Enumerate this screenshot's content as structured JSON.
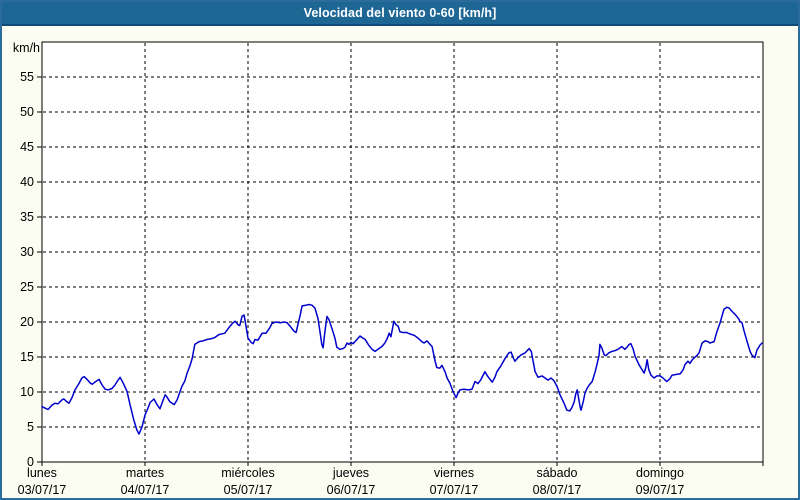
{
  "window": {
    "title": "Velocidad del viento 0-60 [km/h]"
  },
  "colors": {
    "titlebar_bg": "#1e6795",
    "titlebar_border": "#0f4c78",
    "frame_border": "#2c6c9c",
    "page_bg": "#fbfdf3",
    "plot_bg": "#ffffff",
    "grid": "#000000",
    "axis": "#000000",
    "text": "#000000",
    "line": "#0000cc"
  },
  "chart_data": {
    "type": "line",
    "title": "Velocidad del viento 0-60 [km/h]",
    "unit_label": "km/h",
    "ylim": [
      0,
      60
    ],
    "ytick_step": 5,
    "ytick_label_max": 55,
    "x_unit": "hours since Monday 00:00",
    "xlim": [
      0,
      168
    ],
    "grid": "dashed",
    "legend": "none",
    "days": [
      {
        "name": "lunes",
        "date": "03/07/17"
      },
      {
        "name": "martes",
        "date": "04/07/17"
      },
      {
        "name": "miércoles",
        "date": "05/07/17"
      },
      {
        "name": "jueves",
        "date": "06/07/17"
      },
      {
        "name": "viernes",
        "date": "07/07/17"
      },
      {
        "name": "sábado",
        "date": "08/07/17"
      },
      {
        "name": "domingo",
        "date": "09/07/17"
      }
    ],
    "series": [
      {
        "name": "Velocidad del viento",
        "color": "#0000cc",
        "points": [
          [
            0,
            7.9
          ],
          [
            0.7,
            7.7
          ],
          [
            1.4,
            7.5
          ],
          [
            2.3,
            8.1
          ],
          [
            3,
            8.4
          ],
          [
            3.7,
            8.3
          ],
          [
            4.7,
            8.9
          ],
          [
            5.1,
            9
          ],
          [
            5.8,
            8.6
          ],
          [
            6.3,
            8.4
          ],
          [
            7,
            9.2
          ],
          [
            7.7,
            10.3
          ],
          [
            8.6,
            11.2
          ],
          [
            9.3,
            12
          ],
          [
            9.8,
            12.2
          ],
          [
            10.5,
            11.8
          ],
          [
            11.2,
            11.3
          ],
          [
            11.7,
            11.1
          ],
          [
            12.3,
            11.4
          ],
          [
            12.8,
            11.6
          ],
          [
            13.3,
            11.8
          ],
          [
            14,
            11
          ],
          [
            14.7,
            10.4
          ],
          [
            15.4,
            10.3
          ],
          [
            16.3,
            10.5
          ],
          [
            17,
            11
          ],
          [
            17.5,
            11.5
          ],
          [
            18.2,
            12.1
          ],
          [
            18.9,
            11.3
          ],
          [
            19.8,
            10.1
          ],
          [
            20.5,
            8.2
          ],
          [
            21.4,
            6
          ],
          [
            22.1,
            4.6
          ],
          [
            22.6,
            4
          ],
          [
            23.3,
            5
          ],
          [
            24,
            6.7
          ],
          [
            24.7,
            7.7
          ],
          [
            25.2,
            8.5
          ],
          [
            26.1,
            9
          ],
          [
            26.8,
            8.2
          ],
          [
            27.5,
            7.6
          ],
          [
            28.2,
            8.8
          ],
          [
            28.7,
            9.6
          ],
          [
            29.1,
            9.3
          ],
          [
            29.8,
            8.6
          ],
          [
            30.8,
            8.2
          ],
          [
            31.5,
            8.9
          ],
          [
            31.9,
            9.6
          ],
          [
            32.6,
            10.8
          ],
          [
            33.3,
            11.6
          ],
          [
            33.8,
            12.7
          ],
          [
            34.5,
            13.8
          ],
          [
            35,
            14.8
          ],
          [
            35.6,
            16.8
          ],
          [
            36.6,
            17.2
          ],
          [
            37.5,
            17.3
          ],
          [
            38.4,
            17.5
          ],
          [
            39.4,
            17.6
          ],
          [
            40.3,
            17.8
          ],
          [
            41.2,
            18.2
          ],
          [
            42.6,
            18.4
          ],
          [
            43.8,
            19.4
          ],
          [
            44.5,
            19.9
          ],
          [
            45,
            20.1
          ],
          [
            45.7,
            19.6
          ],
          [
            46.1,
            19.5
          ],
          [
            46.6,
            20.8
          ],
          [
            47.1,
            21
          ],
          [
            47.5,
            19.5
          ],
          [
            48,
            17.7
          ],
          [
            48.7,
            17.1
          ],
          [
            49.2,
            16.9
          ],
          [
            49.6,
            17.5
          ],
          [
            50.3,
            17.4
          ],
          [
            51.3,
            18.4
          ],
          [
            52.2,
            18.4
          ],
          [
            53.1,
            19.2
          ],
          [
            53.6,
            19.8
          ],
          [
            54.5,
            20
          ],
          [
            55.5,
            19.9
          ],
          [
            56.4,
            20
          ],
          [
            57.1,
            19.9
          ],
          [
            57.8,
            19.4
          ],
          [
            58.7,
            18.7
          ],
          [
            59.2,
            18.5
          ],
          [
            59.7,
            19.8
          ],
          [
            60.1,
            20.8
          ],
          [
            60.6,
            22.3
          ],
          [
            61.5,
            22.4
          ],
          [
            62.2,
            22.5
          ],
          [
            62.9,
            22.4
          ],
          [
            63.6,
            22
          ],
          [
            64.3,
            20.5
          ],
          [
            64.8,
            18.5
          ],
          [
            65.2,
            16.8
          ],
          [
            65.5,
            16.3
          ],
          [
            65.9,
            18.5
          ],
          [
            66.4,
            20.8
          ],
          [
            66.9,
            20.3
          ],
          [
            67.1,
            19.9
          ],
          [
            67.8,
            18.6
          ],
          [
            68.3,
            17.6
          ],
          [
            68.7,
            16.4
          ],
          [
            69.4,
            16.1
          ],
          [
            70.1,
            16.2
          ],
          [
            70.6,
            16.4
          ],
          [
            71.1,
            17
          ],
          [
            71.5,
            16.8
          ],
          [
            72,
            17.1
          ],
          [
            72.5,
            16.9
          ],
          [
            72.9,
            17.2
          ],
          [
            73.4,
            17.5
          ],
          [
            74.1,
            18
          ],
          [
            74.8,
            17.7
          ],
          [
            75.3,
            17.5
          ],
          [
            76,
            16.8
          ],
          [
            76.9,
            16.1
          ],
          [
            77.6,
            15.8
          ],
          [
            78.5,
            16.2
          ],
          [
            79.2,
            16.5
          ],
          [
            79.9,
            17
          ],
          [
            80.4,
            17.6
          ],
          [
            80.9,
            18.4
          ],
          [
            81.3,
            17.9
          ],
          [
            82,
            20.1
          ],
          [
            82.5,
            19.6
          ],
          [
            83,
            19.4
          ],
          [
            83.4,
            18.6
          ],
          [
            84.1,
            18.5
          ],
          [
            85,
            18.5
          ],
          [
            85.7,
            18.3
          ],
          [
            86.7,
            18.1
          ],
          [
            87.4,
            17.8
          ],
          [
            87.8,
            17.6
          ],
          [
            88.5,
            17.2
          ],
          [
            89,
            17
          ],
          [
            89.7,
            17.3
          ],
          [
            90.4,
            16.8
          ],
          [
            90.9,
            16.5
          ],
          [
            91.6,
            14.4
          ],
          [
            92,
            13.5
          ],
          [
            92.7,
            13.4
          ],
          [
            93.2,
            13.8
          ],
          [
            93.9,
            12.9
          ],
          [
            94.4,
            12
          ],
          [
            95.1,
            11.2
          ],
          [
            95.5,
            10.5
          ],
          [
            96,
            9.8
          ],
          [
            96.5,
            9.2
          ],
          [
            96.9,
            9.8
          ],
          [
            97.4,
            10.3
          ],
          [
            98.3,
            10.4
          ],
          [
            99.3,
            10.3
          ],
          [
            100.2,
            10.4
          ],
          [
            100.9,
            11.5
          ],
          [
            101.6,
            11.2
          ],
          [
            102.3,
            11.8
          ],
          [
            103.2,
            12.9
          ],
          [
            103.9,
            12.2
          ],
          [
            104.9,
            11.4
          ],
          [
            105.6,
            12.2
          ],
          [
            106,
            12.9
          ],
          [
            107,
            13.8
          ],
          [
            107.9,
            14.8
          ],
          [
            108.8,
            15.6
          ],
          [
            109.3,
            15.7
          ],
          [
            109.8,
            14.9
          ],
          [
            110.2,
            14.4
          ],
          [
            110.9,
            14.9
          ],
          [
            111.6,
            15.3
          ],
          [
            112.6,
            15.6
          ],
          [
            113.5,
            16.2
          ],
          [
            114,
            15.8
          ],
          [
            114.4,
            14.5
          ],
          [
            114.9,
            12.9
          ],
          [
            115.6,
            12.1
          ],
          [
            116.5,
            12.3
          ],
          [
            117.2,
            12
          ],
          [
            117.9,
            11.7
          ],
          [
            118.6,
            12
          ],
          [
            119.3,
            11.6
          ],
          [
            120,
            10.8
          ],
          [
            120.7,
            9.6
          ],
          [
            121.4,
            8.7
          ],
          [
            121.9,
            8
          ],
          [
            122.3,
            7.4
          ],
          [
            123,
            7.3
          ],
          [
            123.5,
            7.8
          ],
          [
            124,
            8.6
          ],
          [
            124.4,
            9.8
          ],
          [
            124.7,
            10.3
          ],
          [
            125.1,
            8.9
          ],
          [
            125.4,
            7.8
          ],
          [
            125.6,
            7.4
          ],
          [
            126.1,
            8.6
          ],
          [
            126.5,
            9.8
          ],
          [
            127,
            10.5
          ],
          [
            127.5,
            11
          ],
          [
            128.2,
            11.5
          ],
          [
            128.9,
            12.9
          ],
          [
            129.3,
            13.9
          ],
          [
            129.8,
            15.3
          ],
          [
            130,
            16.8
          ],
          [
            130.5,
            16.2
          ],
          [
            131,
            15.3
          ],
          [
            131.4,
            15.2
          ],
          [
            132.1,
            15.6
          ],
          [
            132.8,
            15.8
          ],
          [
            133.5,
            15.9
          ],
          [
            134.2,
            16.1
          ],
          [
            135.1,
            16.5
          ],
          [
            135.8,
            16.1
          ],
          [
            136.3,
            16.4
          ],
          [
            136.8,
            16.8
          ],
          [
            137.2,
            16.9
          ],
          [
            137.7,
            16.2
          ],
          [
            138.2,
            15.1
          ],
          [
            139.1,
            13.9
          ],
          [
            139.8,
            13.2
          ],
          [
            140.3,
            12.7
          ],
          [
            140.7,
            13.5
          ],
          [
            141,
            14.6
          ],
          [
            141.4,
            13.2
          ],
          [
            141.9,
            12.4
          ],
          [
            142.6,
            12
          ],
          [
            143.3,
            12.3
          ],
          [
            144,
            12.3
          ],
          [
            144.7,
            12
          ],
          [
            145.2,
            11.7
          ],
          [
            145.6,
            11.5
          ],
          [
            146.3,
            11.9
          ],
          [
            146.8,
            12.4
          ],
          [
            147.7,
            12.5
          ],
          [
            148.7,
            12.6
          ],
          [
            149.4,
            13.2
          ],
          [
            149.8,
            13.9
          ],
          [
            150.5,
            14.4
          ],
          [
            151,
            14.1
          ],
          [
            151.5,
            14.6
          ],
          [
            152.2,
            15
          ],
          [
            152.6,
            15.2
          ],
          [
            153.1,
            15.6
          ],
          [
            153.8,
            17
          ],
          [
            154.5,
            17.3
          ],
          [
            155.2,
            17.2
          ],
          [
            155.6,
            17
          ],
          [
            156.6,
            17.2
          ],
          [
            157.3,
            18.7
          ],
          [
            158,
            19.9
          ],
          [
            158.9,
            21.8
          ],
          [
            159.6,
            22.1
          ],
          [
            160.1,
            22
          ],
          [
            160.8,
            21.5
          ],
          [
            161.5,
            21.1
          ],
          [
            162.4,
            20.4
          ],
          [
            162.6,
            20.1
          ],
          [
            163.1,
            19.9
          ],
          [
            163.6,
            18.7
          ],
          [
            164.3,
            17.2
          ],
          [
            165,
            15.8
          ],
          [
            165.4,
            15.3
          ],
          [
            166.1,
            14.9
          ],
          [
            166.6,
            16
          ],
          [
            167.3,
            16.7
          ],
          [
            167.8,
            17
          ]
        ]
      }
    ]
  }
}
